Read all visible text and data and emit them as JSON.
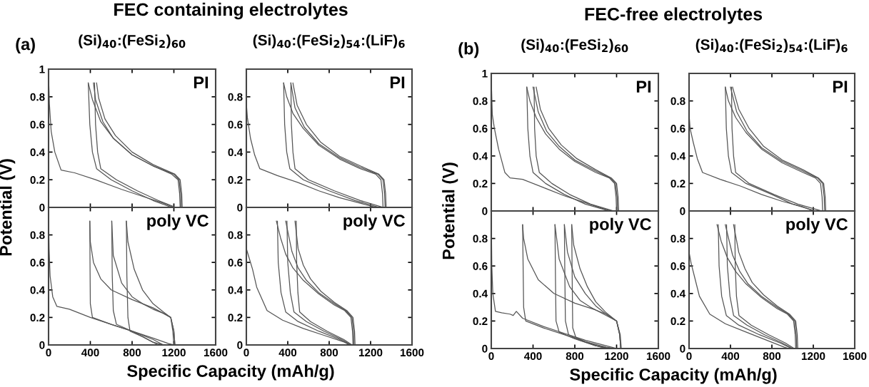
{
  "chart_data": [
    {
      "type": "line",
      "title": "FEC containing electrolytes",
      "subtitle": "(Si)$_{40}$:(FeSi$_{2}$)$_{60}$",
      "annotations": [
        "(a)",
        "PI"
      ],
      "xlim": [
        0,
        1600
      ],
      "ylim": [
        0,
        1
      ],
      "xticks": [
        0,
        400,
        800,
        1200,
        1600
      ],
      "yticks": [
        0,
        0.2,
        0.4,
        0.6,
        0.8,
        1
      ],
      "tick_labels": "y",
      "series": [
        {
          "color": "#555555",
          "x": [
            0,
            8,
            25,
            60,
            120,
            250,
            450,
            700,
            900,
            1100,
            1200
          ],
          "values": [
            0.95,
            0.75,
            0.55,
            0.4,
            0.27,
            0.25,
            0.2,
            0.13,
            0.08,
            0.03,
            0
          ]
        },
        {
          "color": "#555555",
          "x": [
            1260,
            1255,
            1240,
            1180,
            1000,
            800,
            620,
            500,
            420,
            380
          ],
          "values": [
            0,
            0.1,
            0.2,
            0.24,
            0.3,
            0.38,
            0.5,
            0.62,
            0.78,
            0.9
          ]
        },
        {
          "color": "#555555",
          "x": [
            380,
            395,
            420,
            460,
            600,
            800,
            1000,
            1180
          ],
          "values": [
            0.9,
            0.6,
            0.4,
            0.28,
            0.2,
            0.12,
            0.05,
            0
          ]
        },
        {
          "color": "#555555",
          "x": [
            1270,
            1265,
            1250,
            1200,
            1000,
            800,
            620,
            520,
            450,
            430
          ],
          "values": [
            0,
            0.1,
            0.2,
            0.24,
            0.3,
            0.38,
            0.5,
            0.62,
            0.78,
            0.9
          ]
        },
        {
          "color": "#555555",
          "x": [
            440,
            450,
            470,
            500,
            650,
            850,
            1050,
            1220
          ],
          "values": [
            0.9,
            0.6,
            0.4,
            0.28,
            0.2,
            0.12,
            0.05,
            0
          ]
        },
        {
          "color": "#555555",
          "x": [
            1280,
            1275,
            1260,
            1210,
            1000,
            800,
            640,
            540,
            480,
            460
          ],
          "values": [
            0,
            0.1,
            0.2,
            0.24,
            0.31,
            0.4,
            0.52,
            0.64,
            0.79,
            0.9
          ]
        }
      ]
    },
    {
      "type": "line",
      "subtitle": "(Si)$_{40}$:(FeSi$_{2}$)$_{54}$:(LiF)$_{6}$",
      "annotations": [
        "PI"
      ],
      "xlim": [
        0,
        1600
      ],
      "ylim": [
        0,
        1
      ],
      "xticks": [
        0,
        400,
        800,
        1200,
        1600
      ],
      "yticks": [
        0,
        0.2,
        0.4,
        0.6,
        0.8
      ],
      "tick_labels": "y",
      "series": [
        {
          "color": "#555555",
          "x": [
            0,
            10,
            40,
            80,
            130,
            300,
            500,
            700,
            900,
            1100,
            1250
          ],
          "values": [
            0.75,
            0.65,
            0.5,
            0.38,
            0.28,
            0.23,
            0.18,
            0.12,
            0.07,
            0.03,
            0
          ]
        },
        {
          "color": "#555555",
          "x": [
            1320,
            1315,
            1300,
            1250,
            1100,
            900,
            700,
            550,
            450,
            390,
            360
          ],
          "values": [
            0,
            0.1,
            0.2,
            0.24,
            0.28,
            0.35,
            0.45,
            0.57,
            0.68,
            0.8,
            0.9
          ]
        },
        {
          "color": "#555555",
          "x": [
            360,
            370,
            390,
            420,
            550,
            800,
            1050,
            1280
          ],
          "values": [
            0.9,
            0.6,
            0.4,
            0.28,
            0.2,
            0.12,
            0.05,
            0
          ]
        },
        {
          "color": "#555555",
          "x": [
            1340,
            1335,
            1320,
            1270,
            1100,
            900,
            700,
            560,
            470,
            430
          ],
          "values": [
            0,
            0.1,
            0.2,
            0.24,
            0.29,
            0.36,
            0.46,
            0.58,
            0.72,
            0.9
          ]
        },
        {
          "color": "#555555",
          "x": [
            430,
            435,
            450,
            470,
            600,
            850,
            1100,
            1320
          ],
          "values": [
            0.9,
            0.6,
            0.4,
            0.28,
            0.2,
            0.12,
            0.05,
            0
          ]
        },
        {
          "color": "#555555",
          "x": [
            1350,
            1345,
            1330,
            1280,
            1100,
            900,
            720,
            580,
            490,
            450
          ],
          "values": [
            0,
            0.1,
            0.2,
            0.24,
            0.3,
            0.37,
            0.47,
            0.6,
            0.74,
            0.9
          ]
        }
      ]
    },
    {
      "type": "line",
      "title": "FEC-free electrolytes",
      "subtitle": "(Si)$_{40}$:(FeSi$_{2}$)$_{60}$",
      "annotations": [
        "(b)",
        "PI"
      ],
      "xlim": [
        0,
        1600
      ],
      "ylim": [
        0,
        1
      ],
      "xticks": [
        0,
        400,
        800,
        1200,
        1600
      ],
      "yticks": [
        0,
        0.2,
        0.4,
        0.6,
        0.8,
        1
      ],
      "tick_labels": "y",
      "series": [
        {
          "color": "#555555",
          "x": [
            0,
            10,
            30,
            70,
            130,
            180,
            300,
            500,
            700,
            900,
            1100,
            1150
          ],
          "values": [
            0.95,
            0.7,
            0.6,
            0.45,
            0.28,
            0.24,
            0.23,
            0.17,
            0.11,
            0.06,
            0.01,
            0
          ]
        },
        {
          "color": "#555555",
          "x": [
            1200,
            1195,
            1180,
            1130,
            1000,
            800,
            650,
            520,
            430,
            370,
            340
          ],
          "values": [
            0,
            0.1,
            0.2,
            0.24,
            0.28,
            0.36,
            0.45,
            0.56,
            0.68,
            0.8,
            0.9
          ]
        },
        {
          "color": "#555555",
          "x": [
            340,
            350,
            370,
            400,
            520,
            700,
            900,
            1130
          ],
          "values": [
            0.9,
            0.6,
            0.4,
            0.28,
            0.2,
            0.12,
            0.05,
            0
          ]
        },
        {
          "color": "#555555",
          "x": [
            1210,
            1205,
            1190,
            1140,
            1000,
            800,
            650,
            530,
            450,
            400
          ],
          "values": [
            0,
            0.1,
            0.2,
            0.24,
            0.29,
            0.37,
            0.47,
            0.58,
            0.72,
            0.9
          ]
        },
        {
          "color": "#555555",
          "x": [
            410,
            415,
            430,
            460,
            580,
            750,
            950,
            1170
          ],
          "values": [
            0.9,
            0.6,
            0.4,
            0.28,
            0.2,
            0.12,
            0.05,
            0
          ]
        },
        {
          "color": "#555555",
          "x": [
            1220,
            1215,
            1200,
            1150,
            1000,
            820,
            670,
            550,
            470,
            430
          ],
          "values": [
            0,
            0.1,
            0.2,
            0.24,
            0.3,
            0.38,
            0.48,
            0.6,
            0.74,
            0.9
          ]
        }
      ]
    },
    {
      "type": "line",
      "subtitle": "(Si)$_{40}$:(FeSi$_{2}$)$_{54}$:(LiF)$_{6}$",
      "annotations": [
        "PI"
      ],
      "xlim": [
        0,
        1600
      ],
      "ylim": [
        0,
        1
      ],
      "xticks": [
        0,
        400,
        800,
        1200,
        1600
      ],
      "yticks": [
        0,
        0.2,
        0.4,
        0.6,
        0.8
      ],
      "tick_labels": "y",
      "series": [
        {
          "color": "#555555",
          "x": [
            0,
            10,
            40,
            80,
            130,
            300,
            500,
            700,
            900,
            1100,
            1200
          ],
          "values": [
            0.7,
            0.6,
            0.5,
            0.38,
            0.28,
            0.23,
            0.18,
            0.12,
            0.07,
            0.03,
            0
          ]
        },
        {
          "color": "#555555",
          "x": [
            1290,
            1285,
            1270,
            1220,
            1100,
            900,
            700,
            550,
            450,
            380,
            350
          ],
          "values": [
            0,
            0.1,
            0.2,
            0.24,
            0.28,
            0.35,
            0.45,
            0.57,
            0.68,
            0.8,
            0.9
          ]
        },
        {
          "color": "#555555",
          "x": [
            350,
            360,
            380,
            410,
            550,
            800,
            1000,
            1220
          ],
          "values": [
            0.9,
            0.6,
            0.4,
            0.28,
            0.2,
            0.12,
            0.05,
            0
          ]
        },
        {
          "color": "#555555",
          "x": [
            1310,
            1305,
            1290,
            1240,
            1100,
            900,
            700,
            560,
            460,
            400
          ],
          "values": [
            0,
            0.1,
            0.2,
            0.24,
            0.29,
            0.36,
            0.46,
            0.58,
            0.72,
            0.9
          ]
        },
        {
          "color": "#555555",
          "x": [
            410,
            415,
            430,
            450,
            580,
            820,
            1050,
            1280
          ],
          "values": [
            0.9,
            0.6,
            0.4,
            0.28,
            0.2,
            0.12,
            0.05,
            0
          ]
        },
        {
          "color": "#555555",
          "x": [
            1320,
            1315,
            1300,
            1250,
            1100,
            900,
            720,
            580,
            480,
            420
          ],
          "values": [
            0,
            0.1,
            0.2,
            0.24,
            0.3,
            0.37,
            0.47,
            0.6,
            0.74,
            0.9
          ]
        }
      ]
    },
    {
      "type": "line",
      "ylabel": "Potential (V)",
      "xlabel": "Specific Capacity (mAh/g)",
      "annotations": [
        "poly VC"
      ],
      "xlim": [
        0,
        1600
      ],
      "ylim": [
        0,
        1
      ],
      "xticks": [
        0,
        400,
        800,
        1200,
        1600
      ],
      "yticks": [
        0,
        0.2,
        0.4,
        0.6,
        0.8
      ],
      "series": [
        {
          "color": "#555555",
          "x": [
            0,
            5,
            15,
            40,
            80,
            200,
            400,
            600,
            800,
            1000,
            1150,
            1200
          ],
          "values": [
            0.95,
            0.7,
            0.5,
            0.35,
            0.28,
            0.26,
            0.2,
            0.15,
            0.1,
            0.05,
            0.01,
            0
          ]
        },
        {
          "color": "#555555",
          "x": [
            1200,
            1190,
            1170,
            1100,
            1000,
            800,
            600,
            500,
            430,
            400,
            395
          ],
          "values": [
            0,
            0.1,
            0.2,
            0.23,
            0.27,
            0.33,
            0.4,
            0.48,
            0.6,
            0.75,
            0.9
          ]
        },
        {
          "color": "#555555",
          "x": [
            395,
            397,
            400,
            420,
            600,
            800,
            1000,
            1100
          ],
          "values": [
            0.9,
            0.6,
            0.3,
            0.2,
            0.15,
            0.1,
            0.04,
            0
          ]
        },
        {
          "color": "#555555",
          "x": [
            1210,
            1200,
            1170,
            1100,
            1000,
            900,
            800,
            700,
            620,
            605
          ],
          "values": [
            0,
            0.1,
            0.2,
            0.23,
            0.26,
            0.3,
            0.35,
            0.45,
            0.65,
            0.9
          ]
        },
        {
          "color": "#555555",
          "x": [
            605,
            610,
            620,
            650,
            800,
            950,
            1050
          ],
          "values": [
            0.9,
            0.5,
            0.25,
            0.15,
            0.1,
            0.04,
            0
          ]
        },
        {
          "color": "#555555",
          "x": [
            1210,
            1200,
            1170,
            1100,
            1000,
            900,
            820,
            760,
            745
          ],
          "values": [
            0,
            0.1,
            0.2,
            0.24,
            0.3,
            0.4,
            0.55,
            0.75,
            0.9
          ]
        },
        {
          "color": "#555555",
          "x": [
            745,
            750,
            760,
            780,
            900,
            1000,
            1100
          ],
          "values": [
            0.9,
            0.5,
            0.2,
            0.1,
            0.06,
            0.02,
            0
          ]
        }
      ]
    },
    {
      "type": "line",
      "annotations": [
        "poly VC"
      ],
      "xlim": [
        0,
        1600
      ],
      "ylim": [
        0,
        1
      ],
      "xticks": [
        0,
        400,
        800,
        1200,
        1600
      ],
      "yticks": [
        0,
        0.2,
        0.4,
        0.6,
        0.8
      ],
      "series": [
        {
          "color": "#555555",
          "x": [
            0,
            20,
            60,
            100,
            200,
            350,
            550,
            750,
            950,
            1000
          ],
          "values": [
            0.7,
            0.65,
            0.55,
            0.42,
            0.25,
            0.18,
            0.12,
            0.07,
            0.02,
            0
          ]
        },
        {
          "color": "#555555",
          "x": [
            1030,
            1025,
            1010,
            950,
            850,
            700,
            550,
            450,
            380,
            330,
            290
          ],
          "values": [
            0,
            0.1,
            0.2,
            0.25,
            0.29,
            0.37,
            0.47,
            0.56,
            0.66,
            0.78,
            0.9
          ]
        },
        {
          "color": "#555555",
          "x": [
            300,
            308,
            335,
            380,
            500,
            700,
            900,
            1000
          ],
          "values": [
            0.9,
            0.6,
            0.38,
            0.24,
            0.17,
            0.1,
            0.04,
            0
          ]
        },
        {
          "color": "#555555",
          "x": [
            1040,
            1035,
            1020,
            960,
            850,
            700,
            580,
            500,
            440,
            380
          ],
          "values": [
            0,
            0.1,
            0.2,
            0.25,
            0.3,
            0.38,
            0.47,
            0.56,
            0.68,
            0.9
          ]
        },
        {
          "color": "#555555",
          "x": [
            392,
            400,
            425,
            460,
            580,
            750,
            920,
            1010
          ],
          "values": [
            0.9,
            0.6,
            0.38,
            0.24,
            0.17,
            0.1,
            0.04,
            0
          ]
        },
        {
          "color": "#555555",
          "x": [
            1050,
            1045,
            1030,
            970,
            850,
            720,
            620,
            550,
            500,
            470
          ],
          "values": [
            0,
            0.1,
            0.2,
            0.25,
            0.31,
            0.39,
            0.48,
            0.58,
            0.7,
            0.9
          ]
        },
        {
          "color": "#555555",
          "x": [
            482,
            486,
            498,
            515,
            620,
            780,
            940,
            1020
          ],
          "values": [
            0.9,
            0.6,
            0.38,
            0.24,
            0.17,
            0.1,
            0.04,
            0
          ]
        }
      ]
    },
    {
      "type": "line",
      "ylabel": "Potential (V)",
      "xlabel": "Specific Capacity (mAh/g)",
      "annotations": [
        "poly VC"
      ],
      "xlim": [
        0,
        1600
      ],
      "ylim": [
        0,
        1
      ],
      "xticks": [
        0,
        400,
        800,
        1200,
        1600
      ],
      "yticks": [
        0,
        0.2,
        0.4,
        0.6,
        0.8
      ],
      "series": [
        {
          "color": "#555555",
          "x": [
            0,
            5,
            15,
            40,
            100,
            180,
            210,
            240,
            300,
            500,
            700,
            900,
            1100,
            1200
          ],
          "values": [
            0.95,
            0.6,
            0.4,
            0.27,
            0.26,
            0.25,
            0.24,
            0.27,
            0.22,
            0.16,
            0.11,
            0.06,
            0.02,
            0
          ]
        },
        {
          "color": "#555555",
          "x": [
            1240,
            1230,
            1200,
            1100,
            1000,
            800,
            600,
            450,
            350,
            310,
            300
          ],
          "values": [
            0,
            0.1,
            0.2,
            0.25,
            0.28,
            0.33,
            0.4,
            0.5,
            0.65,
            0.8,
            0.9
          ]
        },
        {
          "color": "#555555",
          "x": [
            300,
            305,
            310,
            330,
            500,
            700,
            900,
            1100,
            1180
          ],
          "values": [
            0.9,
            0.6,
            0.3,
            0.2,
            0.15,
            0.1,
            0.05,
            0.01,
            0
          ]
        },
        {
          "color": "#555555",
          "x": [
            1240,
            1230,
            1200,
            1150,
            1050,
            950,
            850,
            750,
            650,
            610
          ],
          "values": [
            0,
            0.1,
            0.2,
            0.22,
            0.26,
            0.3,
            0.35,
            0.45,
            0.65,
            0.9
          ]
        },
        {
          "color": "#555555",
          "x": [
            610,
            615,
            620,
            650,
            800,
            1000,
            1150
          ],
          "values": [
            0.9,
            0.5,
            0.2,
            0.12,
            0.07,
            0.02,
            0
          ]
        },
        {
          "color": "#555555",
          "x": [
            1240,
            1230,
            1200,
            1100,
            1000,
            900,
            800,
            730,
            700
          ],
          "values": [
            0,
            0.1,
            0.2,
            0.25,
            0.31,
            0.4,
            0.52,
            0.7,
            0.9
          ]
        },
        {
          "color": "#555555",
          "x": [
            700,
            705,
            710,
            740,
            850,
            1000,
            1150
          ],
          "values": [
            0.9,
            0.5,
            0.2,
            0.1,
            0.06,
            0.02,
            0
          ]
        },
        {
          "color": "#555555",
          "x": [
            1245,
            1235,
            1200,
            1100,
            1000,
            920,
            850,
            790,
            770
          ],
          "values": [
            0,
            0.1,
            0.2,
            0.26,
            0.34,
            0.45,
            0.58,
            0.75,
            0.9
          ]
        },
        {
          "color": "#555555",
          "x": [
            770,
            775,
            780,
            810,
            900,
            1050,
            1180
          ],
          "values": [
            0.9,
            0.5,
            0.15,
            0.08,
            0.05,
            0.01,
            0
          ]
        }
      ]
    },
    {
      "type": "line",
      "annotations": [
        "poly VC"
      ],
      "xlim": [
        0,
        1600
      ],
      "ylim": [
        0,
        1
      ],
      "xticks": [
        0,
        400,
        800,
        1200,
        1600
      ],
      "yticks": [
        0,
        0.2,
        0.4,
        0.6,
        0.8
      ],
      "series": [
        {
          "color": "#555555",
          "x": [
            0,
            20,
            60,
            100,
            200,
            350,
            550,
            750,
            920,
            960
          ],
          "values": [
            0.7,
            0.62,
            0.5,
            0.38,
            0.25,
            0.18,
            0.12,
            0.06,
            0.01,
            0
          ]
        },
        {
          "color": "#555555",
          "x": [
            1030,
            1025,
            1010,
            950,
            850,
            700,
            550,
            450,
            370,
            310,
            270
          ],
          "values": [
            0,
            0.1,
            0.2,
            0.25,
            0.29,
            0.37,
            0.47,
            0.56,
            0.66,
            0.78,
            0.9
          ]
        },
        {
          "color": "#555555",
          "x": [
            282,
            290,
            315,
            360,
            480,
            680,
            880,
            990
          ],
          "values": [
            0.9,
            0.6,
            0.38,
            0.24,
            0.17,
            0.1,
            0.04,
            0
          ]
        },
        {
          "color": "#555555",
          "x": [
            1040,
            1035,
            1020,
            960,
            850,
            700,
            570,
            490,
            420,
            350
          ],
          "values": [
            0,
            0.1,
            0.2,
            0.25,
            0.3,
            0.38,
            0.47,
            0.56,
            0.68,
            0.9
          ]
        },
        {
          "color": "#555555",
          "x": [
            362,
            370,
            395,
            430,
            560,
            730,
            900,
            1000
          ],
          "values": [
            0.9,
            0.6,
            0.38,
            0.24,
            0.17,
            0.1,
            0.04,
            0
          ]
        },
        {
          "color": "#555555",
          "x": [
            1050,
            1045,
            1030,
            970,
            850,
            720,
            610,
            540,
            480,
            430
          ],
          "values": [
            0,
            0.1,
            0.2,
            0.25,
            0.31,
            0.39,
            0.48,
            0.58,
            0.7,
            0.9
          ]
        },
        {
          "color": "#555555",
          "x": [
            442,
            446,
            458,
            482,
            600,
            770,
            930,
            1015
          ],
          "values": [
            0.9,
            0.6,
            0.38,
            0.24,
            0.17,
            0.1,
            0.04,
            0
          ]
        }
      ]
    }
  ]
}
